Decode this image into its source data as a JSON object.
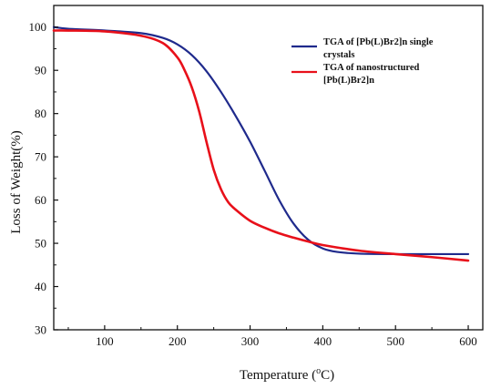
{
  "chart_data": {
    "type": "line",
    "xlabel": "Temperature (",
    "xlabel_unit_sup": "o",
    "xlabel_unit": "C)",
    "ylabel": "Loss of Weight(%)",
    "xlim": [
      30,
      620
    ],
    "ylim": [
      30,
      105
    ],
    "xticks": [
      "100",
      "200",
      "300",
      "400",
      "500",
      "600"
    ],
    "yticks": [
      "30",
      "40",
      "50",
      "60",
      "70",
      "80",
      "90",
      "100"
    ],
    "legend_position": "top-right",
    "grid": false,
    "series": [
      {
        "name_lines": [
          "TGA of [Pb(L)Br2]n single",
          "crystals"
        ],
        "color": "#1f2a8c",
        "x": [
          30,
          50,
          100,
          150,
          180,
          200,
          220,
          240,
          260,
          280,
          300,
          320,
          340,
          360,
          380,
          400,
          420,
          450,
          500,
          550,
          600
        ],
        "y": [
          100,
          99.6,
          99.2,
          98.6,
          97.5,
          96,
          93.5,
          89.8,
          85,
          79.5,
          73.5,
          66.8,
          60,
          54.5,
          50.8,
          48.8,
          48,
          47.6,
          47.5,
          47.5,
          47.5
        ]
      },
      {
        "name_lines": [
          "TGA of nanostructured",
          "[Pb(L)Br2]n"
        ],
        "color": "#e8101a",
        "x": [
          30,
          50,
          100,
          150,
          180,
          200,
          210,
          220,
          230,
          240,
          250,
          260,
          270,
          280,
          300,
          320,
          340,
          360,
          380,
          400,
          450,
          500,
          550,
          600
        ],
        "y": [
          99.2,
          99.2,
          99,
          98,
          96.3,
          93,
          90,
          86,
          80.5,
          73.5,
          67,
          62.5,
          59.5,
          57.8,
          55.2,
          53.6,
          52.3,
          51.3,
          50.4,
          49.6,
          48.3,
          47.5,
          46.8,
          46
        ]
      }
    ]
  }
}
